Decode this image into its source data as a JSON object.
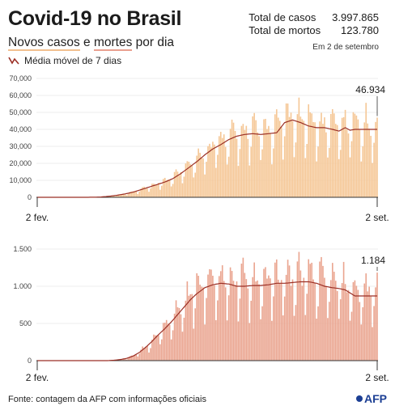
{
  "header": {
    "title": "Covid-19 no Brasil",
    "subtitle_part1": "Novos casos",
    "subtitle_part2": " e ",
    "subtitle_part3": "mortes",
    "subtitle_part4": " por dia",
    "legend_label": "Média móvel de 7 dias"
  },
  "totals": {
    "cases_label": "Total de casos",
    "cases_value": "3.997.865",
    "deaths_label": "Total de mortos",
    "deaths_value": "123.780",
    "as_of": "Em 2 de setembro"
  },
  "footer": {
    "source": "Fonte: contagem da AFP com informações oficiais",
    "logo_text": "AFP"
  },
  "colors": {
    "cases_bar": "#f5c796",
    "deaths_bar": "#eaa590",
    "moving_average": "#9b2f25",
    "axis": "#333333",
    "grid": "#dddddd"
  },
  "chart_data": [
    {
      "type": "bar",
      "title": "Novos casos",
      "series": [
        {
          "name": "Novos casos",
          "values": []
        }
      ],
      "moving_average_series": {
        "name": "Média móvel de 7 dias",
        "values": []
      },
      "x_labels": [
        "2 fev.",
        "2 set."
      ],
      "last_value_label": "46.934",
      "last_value": 46934,
      "ylim": [
        0,
        70000
      ],
      "yticks": [
        0,
        10000,
        20000,
        30000,
        40000,
        50000,
        60000,
        70000
      ],
      "ytick_labels": [
        "0",
        "10,000",
        "20,000",
        "30,000",
        "40,000",
        "50,000",
        "60,000",
        "70,000"
      ],
      "anchors": [
        [
          0,
          0
        ],
        [
          26,
          0
        ],
        [
          30,
          10
        ],
        [
          33,
          30
        ],
        [
          36,
          60
        ],
        [
          40,
          200
        ],
        [
          45,
          600
        ],
        [
          50,
          1200
        ],
        [
          55,
          2000
        ],
        [
          60,
          3000
        ],
        [
          65,
          4500
        ],
        [
          70,
          6000
        ],
        [
          75,
          7500
        ],
        [
          80,
          9000
        ],
        [
          85,
          11000
        ],
        [
          90,
          14000
        ],
        [
          95,
          17500
        ],
        [
          100,
          21000
        ],
        [
          105,
          25000
        ],
        [
          110,
          28500
        ],
        [
          115,
          31000
        ],
        [
          120,
          34000
        ],
        [
          125,
          36000
        ],
        [
          130,
          37000
        ],
        [
          135,
          37500
        ],
        [
          140,
          37000
        ],
        [
          145,
          37500
        ],
        [
          150,
          38000
        ],
        [
          155,
          44000
        ],
        [
          160,
          45500
        ],
        [
          165,
          44000
        ],
        [
          170,
          42000
        ],
        [
          175,
          41000
        ],
        [
          180,
          41000
        ],
        [
          185,
          40000
        ],
        [
          189,
          39000
        ],
        [
          193,
          41000
        ],
        [
          196,
          39500
        ],
        [
          199,
          40000
        ],
        [
          213,
          40000
        ]
      ]
    },
    {
      "type": "bar",
      "title": "Mortes",
      "series": [
        {
          "name": "Mortes",
          "values": []
        }
      ],
      "moving_average_series": {
        "name": "Média móvel de 7 dias",
        "values": []
      },
      "x_labels": [
        "2 fev.",
        "2 set."
      ],
      "last_value_label": "1.184",
      "last_value": 1184,
      "ylim": [
        0,
        1500
      ],
      "yticks": [
        0,
        500,
        1000,
        1500
      ],
      "ytick_labels": [
        "0",
        "500",
        "1.000",
        "1.500"
      ],
      "anchors": [
        [
          0,
          0
        ],
        [
          44,
          0
        ],
        [
          48,
          5
        ],
        [
          52,
          15
        ],
        [
          56,
          30
        ],
        [
          60,
          60
        ],
        [
          64,
          110
        ],
        [
          68,
          180
        ],
        [
          72,
          260
        ],
        [
          76,
          350
        ],
        [
          80,
          430
        ],
        [
          84,
          520
        ],
        [
          88,
          620
        ],
        [
          92,
          720
        ],
        [
          96,
          820
        ],
        [
          100,
          900
        ],
        [
          105,
          980
        ],
        [
          110,
          1020
        ],
        [
          115,
          1040
        ],
        [
          120,
          1030
        ],
        [
          125,
          1000
        ],
        [
          130,
          1000
        ],
        [
          135,
          1010
        ],
        [
          140,
          1010
        ],
        [
          145,
          1020
        ],
        [
          150,
          1040
        ],
        [
          155,
          1040
        ],
        [
          160,
          1050
        ],
        [
          165,
          1060
        ],
        [
          170,
          1060
        ],
        [
          175,
          1040
        ],
        [
          180,
          1000
        ],
        [
          185,
          980
        ],
        [
          189,
          970
        ],
        [
          193,
          950
        ],
        [
          196,
          910
        ],
        [
          199,
          870
        ],
        [
          213,
          870
        ]
      ]
    }
  ]
}
